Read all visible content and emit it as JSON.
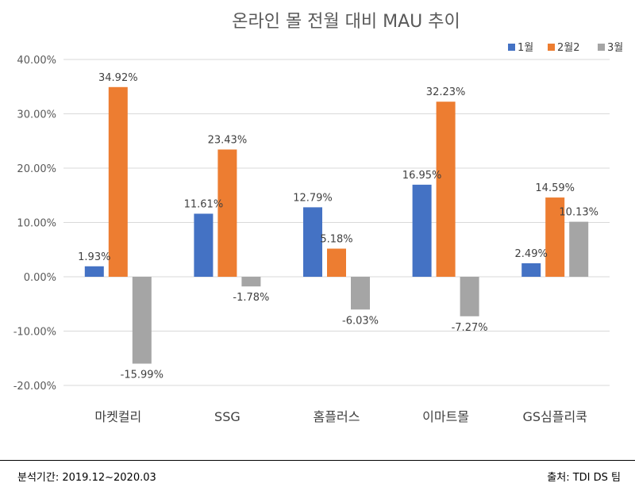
{
  "chart_data": {
    "type": "bar",
    "title": "온라인 몰 전월 대비 MAU 추이",
    "categories": [
      "마켓컬리",
      "SSG",
      "홈플러스",
      "이마트몰",
      "GS심플리쿡"
    ],
    "series": [
      {
        "name": "1월",
        "color": "#4472C4",
        "values": [
          1.93,
          11.61,
          12.79,
          16.95,
          2.49
        ]
      },
      {
        "name": "2월2",
        "color": "#ED7D31",
        "values": [
          34.92,
          23.43,
          5.18,
          32.23,
          14.59
        ]
      },
      {
        "name": "3월",
        "color": "#A5A5A5",
        "values": [
          -15.99,
          -1.78,
          -6.03,
          -7.27,
          10.13
        ]
      }
    ],
    "ylim": [
      -20,
      40
    ],
    "yticks": [
      "-20.00%",
      "-10.00%",
      "0.00%",
      "10.00%",
      "20.00%",
      "30.00%",
      "40.00%"
    ],
    "value_suffix": "%",
    "grid": true,
    "legend_position": "top-right"
  },
  "footer": {
    "period": "분석기간: 2019.12~2020.03",
    "source": "출처: TDI DS 팀"
  }
}
